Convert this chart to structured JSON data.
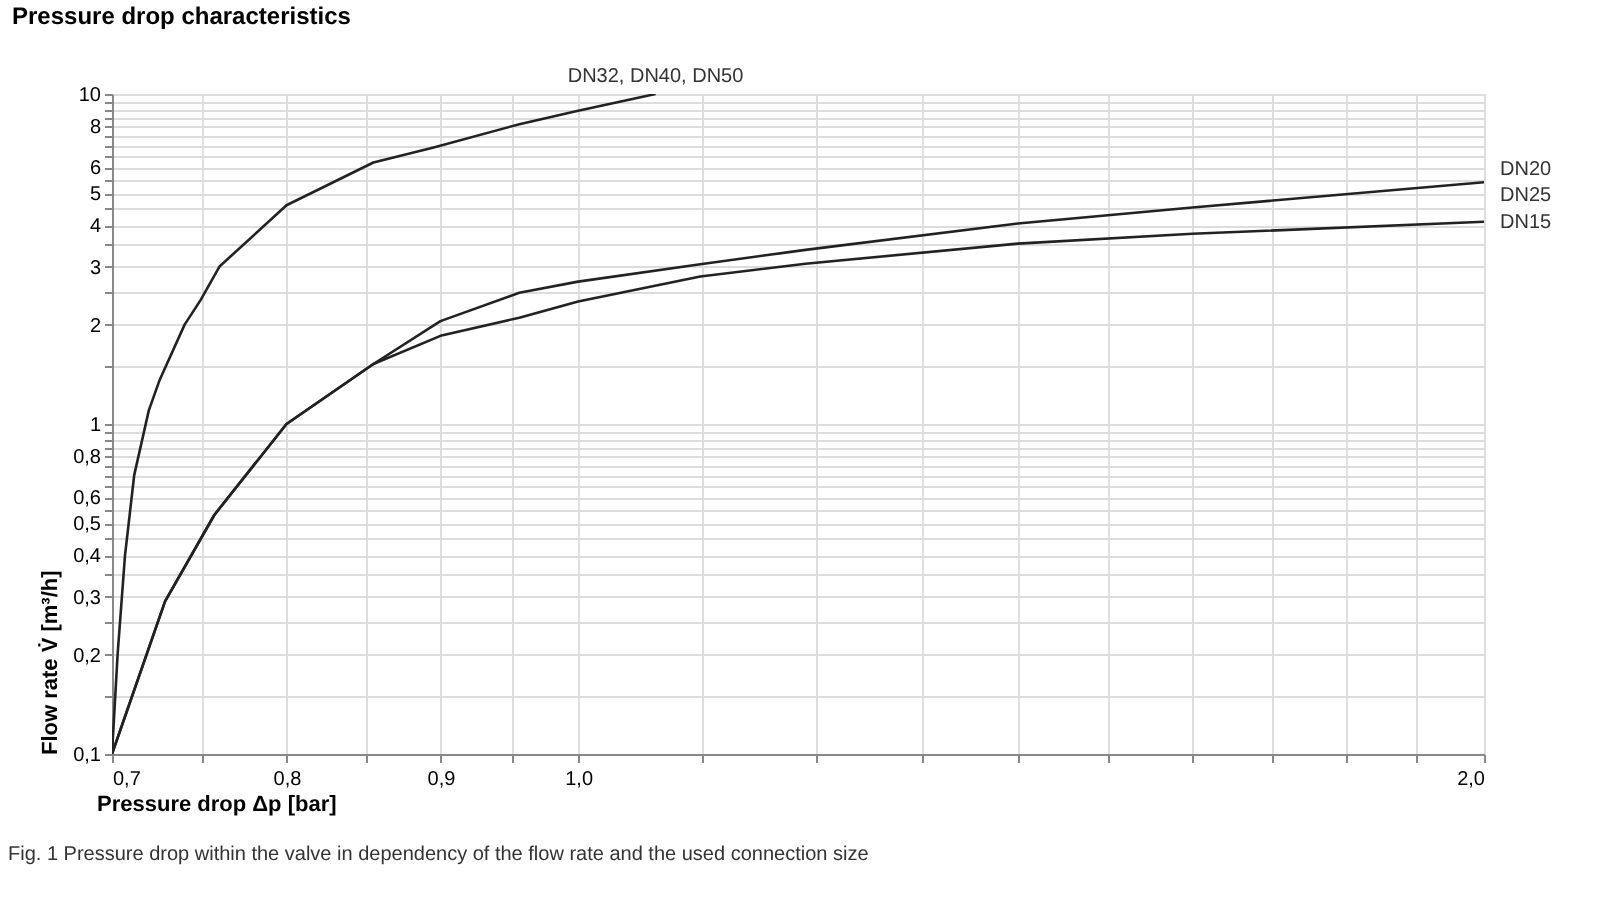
{
  "chart_data": {
    "type": "line",
    "title": "Pressure drop characteristics",
    "xlabel": "Pressure drop Δp [bar]",
    "ylabel": "Flow rate V̇ [m³/h]",
    "log": "xy",
    "grid": true,
    "legend": false,
    "marker": "none",
    "line_style": "solid",
    "xlim": [
      0.7,
      2.0
    ],
    "ylim": [
      0.1,
      10
    ],
    "xticks": [
      {
        "value": 0.7,
        "label": "0,7"
      },
      {
        "value": 0.75,
        "label": null
      },
      {
        "value": 0.8,
        "label": "0,8"
      },
      {
        "value": 0.85,
        "label": null
      },
      {
        "value": 0.9,
        "label": "0,9"
      },
      {
        "value": 0.95,
        "label": null
      },
      {
        "value": 1.0,
        "label": "1,0"
      },
      {
        "value": 1.1,
        "label": null
      },
      {
        "value": 1.2,
        "label": null
      },
      {
        "value": 1.3,
        "label": null
      },
      {
        "value": 1.4,
        "label": null
      },
      {
        "value": 1.5,
        "label": null
      },
      {
        "value": 1.6,
        "label": null
      },
      {
        "value": 1.7,
        "label": null
      },
      {
        "value": 1.8,
        "label": null
      },
      {
        "value": 1.9,
        "label": null
      },
      {
        "value": 2.0,
        "label": "2,0"
      }
    ],
    "yticks": [
      {
        "value": 0.1,
        "label": "0,1"
      },
      {
        "value": 0.15,
        "label": null
      },
      {
        "value": 0.2,
        "label": "0,2"
      },
      {
        "value": 0.25,
        "label": null
      },
      {
        "value": 0.3,
        "label": "0,3"
      },
      {
        "value": 0.35,
        "label": null
      },
      {
        "value": 0.4,
        "label": "0,4"
      },
      {
        "value": 0.45,
        "label": null
      },
      {
        "value": 0.5,
        "label": "0,5"
      },
      {
        "value": 0.55,
        "label": null
      },
      {
        "value": 0.6,
        "label": "0,6"
      },
      {
        "value": 0.65,
        "label": null
      },
      {
        "value": 0.7,
        "label": null
      },
      {
        "value": 0.75,
        "label": null
      },
      {
        "value": 0.8,
        "label": "0,8"
      },
      {
        "value": 0.85,
        "label": null
      },
      {
        "value": 0.9,
        "label": null
      },
      {
        "value": 0.95,
        "label": null
      },
      {
        "value": 1,
        "label": "1"
      },
      {
        "value": 1.5,
        "label": null
      },
      {
        "value": 2,
        "label": "2"
      },
      {
        "value": 2.5,
        "label": null
      },
      {
        "value": 3,
        "label": "3"
      },
      {
        "value": 3.5,
        "label": null
      },
      {
        "value": 4,
        "label": "4"
      },
      {
        "value": 4.5,
        "label": null
      },
      {
        "value": 5,
        "label": "5"
      },
      {
        "value": 5.5,
        "label": null
      },
      {
        "value": 6,
        "label": "6"
      },
      {
        "value": 6.5,
        "label": null
      },
      {
        "value": 7,
        "label": null
      },
      {
        "value": 7.5,
        "label": null
      },
      {
        "value": 8,
        "label": "8"
      },
      {
        "value": 8.5,
        "label": null
      },
      {
        "value": 9,
        "label": null
      },
      {
        "value": 9.5,
        "label": null
      },
      {
        "value": 10,
        "label": "10"
      }
    ],
    "series": [
      {
        "name": "DN32, DN40, DN50",
        "color": "#222222",
        "x": [
          0.7,
          0.703,
          0.707,
          0.712,
          0.72,
          0.726,
          0.74,
          0.749,
          0.76,
          0.8,
          0.855,
          0.896,
          0.956,
          1.0,
          1.061
        ],
        "values": [
          0.1,
          0.2,
          0.4,
          0.7,
          1.1,
          1.36,
          2.0,
          2.37,
          3.0,
          4.6,
          6.2,
          6.9,
          8.1,
          8.9,
          10
        ]
      },
      {
        "color": "#222222",
        "x": [
          0.7,
          0.729,
          0.757,
          0.8,
          0.855,
          0.9,
          0.956,
          1.0,
          1.098,
          1.19,
          1.4,
          1.6,
          2.0
        ],
        "values": [
          0.1,
          0.29,
          0.53,
          1.0,
          1.52,
          2.05,
          2.5,
          2.7,
          3.05,
          3.37,
          4.05,
          4.53,
          5.4
        ]
      },
      {
        "name": "DN15",
        "color": "#222222",
        "x": [
          0.7,
          0.729,
          0.757,
          0.8,
          0.855,
          0.9,
          0.956,
          1.0,
          1.098,
          1.19,
          1.4,
          1.6,
          2.0
        ],
        "values": [
          0.1,
          0.29,
          0.53,
          1.0,
          1.52,
          1.85,
          2.1,
          2.35,
          2.8,
          3.06,
          3.52,
          3.77,
          4.1
        ]
      }
    ],
    "annotations": [
      {
        "text": "DN20",
        "x": 2.0,
        "y": 5.4
      },
      {
        "text": "DN25",
        "x": 2.0,
        "y": 5.4
      },
      "Fig. 1 Pressure drop within the valve in dependency of the flow rate and the used connection size"
    ]
  }
}
